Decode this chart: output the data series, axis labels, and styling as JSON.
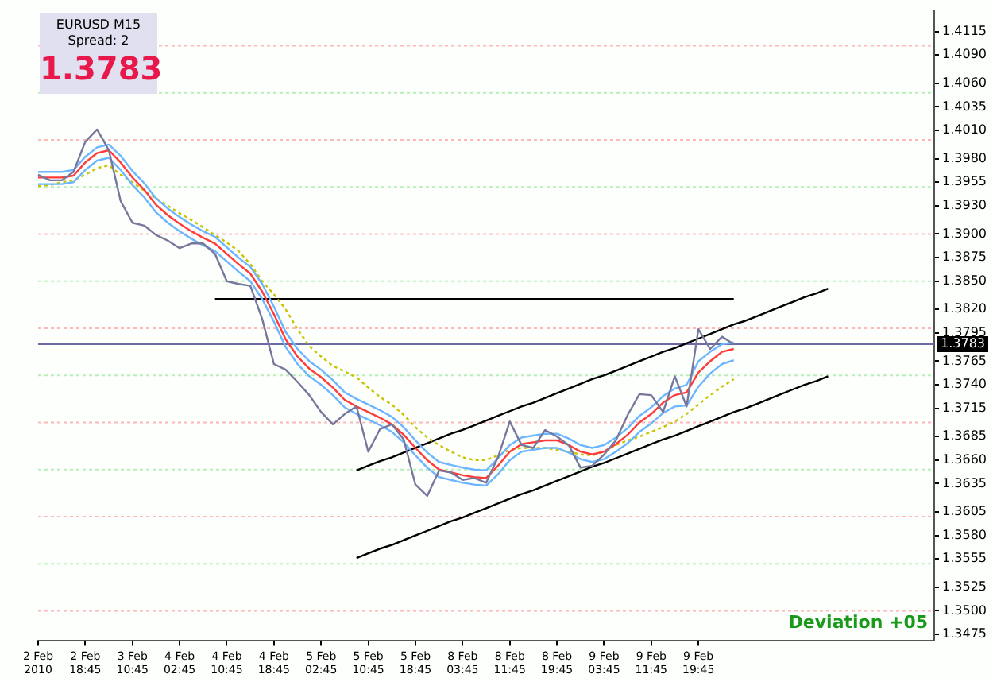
{
  "chart_data": {
    "type": "line",
    "legend": false,
    "marker": "none",
    "categories": [
      "2 Feb 2010",
      null,
      null,
      null,
      "2 Feb 18:45",
      null,
      null,
      null,
      "3 Feb 10:45",
      null,
      null,
      null,
      "4 Feb 02:45",
      null,
      null,
      null,
      "4 Feb 10:45",
      null,
      null,
      null,
      "4 Feb 18:45",
      null,
      null,
      null,
      "5 Feb 02:45",
      null,
      null,
      null,
      "5 Feb 10:45",
      null,
      null,
      null,
      "5 Feb 18:45",
      null,
      null,
      null,
      "8 Feb 03:45",
      null,
      null,
      null,
      "8 Feb 11:45",
      null,
      null,
      null,
      "8 Feb 19:45",
      null,
      null,
      null,
      "9 Feb 03:45",
      null,
      null,
      null,
      "9 Feb 11:45",
      null,
      null,
      null,
      "9 Feb 19:45",
      null,
      null,
      null,
      null,
      null,
      null,
      null,
      null,
      null,
      null,
      null,
      null,
      null,
      null,
      null,
      null,
      null,
      null,
      null,
      null
    ],
    "ylim": [
      1.3468,
      1.4137
    ],
    "yticks": [
      1.4115,
      {
        "value": 1.409,
        "label": "1.4090"
      },
      {
        "value": 1.406,
        "label": "1.4060"
      },
      1.4035,
      {
        "value": 1.401,
        "label": "1.4010"
      },
      {
        "value": 1.398,
        "label": "1.3980"
      },
      1.3955,
      {
        "value": 1.393,
        "label": "1.3930"
      },
      {
        "value": 1.39,
        "label": "1.3900"
      },
      1.3875,
      {
        "value": 1.385,
        "label": "1.3850"
      },
      {
        "value": 1.382,
        "label": "1.3820"
      },
      1.3795,
      1.3765,
      {
        "value": 1.374,
        "label": "1.3740"
      },
      1.3715,
      1.3685,
      {
        "value": 1.366,
        "label": "1.3660"
      },
      1.3635,
      1.3605,
      {
        "value": 1.358,
        "label": "1.3580"
      },
      1.3555,
      1.3525,
      {
        "value": 1.35,
        "label": "1.3500"
      },
      1.3475
    ],
    "series": [
      {
        "color": "#77779c",
        "values": [
          1.3963,
          1.3957,
          1.3957,
          1.3966,
          1.3998,
          1.4011,
          1.3989,
          1.3935,
          1.3912,
          1.3909,
          1.3899,
          1.3893,
          1.3885,
          1.389,
          1.389,
          1.3879,
          1.385,
          1.3847,
          1.3845,
          1.381,
          1.3762,
          1.3756,
          1.3743,
          1.3729,
          1.3711,
          1.3698,
          1.3709,
          1.3717,
          1.3669,
          1.3693,
          1.3698,
          1.3682,
          1.3634,
          1.3622,
          1.3649,
          1.3647,
          1.3639,
          1.3641,
          1.3636,
          1.3663,
          1.3701,
          1.3676,
          1.3673,
          1.3692,
          1.3685,
          1.3676,
          1.3652,
          1.3654,
          1.3666,
          1.3681,
          1.3708,
          1.373,
          1.3729,
          1.3711,
          1.3749,
          1.3717,
          1.3799,
          1.3778,
          1.3791,
          1.3783,
          null,
          null,
          null,
          null,
          null,
          null,
          null,
          null,
          null,
          null,
          null,
          null,
          null,
          null,
          null,
          null,
          null
        ]
      },
      {
        "color": "#ff3b3b",
        "values": [
          1.396,
          1.396,
          1.396,
          1.3962,
          1.3976,
          1.3986,
          1.3989,
          1.3976,
          1.396,
          1.3947,
          1.3931,
          1.392,
          1.3911,
          1.3903,
          1.3896,
          1.389,
          1.3879,
          1.3868,
          1.3858,
          1.3839,
          1.3815,
          1.3788,
          1.377,
          1.3757,
          1.3748,
          1.3737,
          1.3724,
          1.3717,
          1.3711,
          1.3705,
          1.3698,
          1.3687,
          1.3673,
          1.366,
          1.365,
          1.3647,
          1.3644,
          1.3642,
          1.3641,
          1.3654,
          1.3669,
          1.3677,
          1.3679,
          1.3681,
          1.3681,
          1.3676,
          1.3669,
          1.3666,
          1.3669,
          1.3677,
          1.3687,
          1.37,
          1.3709,
          1.3721,
          1.3729,
          1.3732,
          1.3753,
          1.3765,
          1.3775,
          1.3778,
          null,
          null,
          null,
          null,
          null,
          null,
          null,
          null,
          null,
          null,
          null,
          null,
          null,
          null,
          null,
          null,
          null
        ]
      },
      {
        "color": "#6cb6ff",
        "values": [
          1.3966,
          1.3966,
          1.3966,
          1.3968,
          1.3982,
          1.3992,
          1.3995,
          1.3983,
          1.3967,
          1.3954,
          1.3938,
          1.3927,
          1.3918,
          1.391,
          1.3903,
          1.3897,
          1.3886,
          1.3875,
          1.3865,
          1.3847,
          1.3823,
          1.3796,
          1.3778,
          1.3765,
          1.3756,
          1.3745,
          1.3732,
          1.3725,
          1.3719,
          1.3713,
          1.3706,
          1.3695,
          1.3681,
          1.3668,
          1.3658,
          1.3655,
          1.3652,
          1.365,
          1.3649,
          1.3662,
          1.3676,
          1.3684,
          1.3686,
          1.3688,
          1.3688,
          1.3683,
          1.3676,
          1.3673,
          1.3676,
          1.3684,
          1.3694,
          1.3707,
          1.3716,
          1.3728,
          1.3736,
          1.374,
          1.3765,
          1.3775,
          1.3783,
          1.3785,
          null,
          null,
          null,
          null,
          null,
          null,
          null,
          null,
          null,
          null,
          null,
          null,
          null,
          null,
          null,
          null,
          null
        ]
      },
      {
        "color": "#6cb6ff",
        "values": [
          1.3953,
          1.3953,
          1.3953,
          1.3955,
          1.3968,
          1.3978,
          1.3981,
          1.3968,
          1.3952,
          1.3939,
          1.3923,
          1.3912,
          1.3903,
          1.3895,
          1.3888,
          1.3882,
          1.3871,
          1.386,
          1.385,
          1.3831,
          1.3807,
          1.378,
          1.3762,
          1.3749,
          1.374,
          1.3729,
          1.3716,
          1.3709,
          1.3703,
          1.3697,
          1.369,
          1.3679,
          1.3665,
          1.3652,
          1.3642,
          1.3639,
          1.3636,
          1.3634,
          1.3633,
          1.3645,
          1.366,
          1.3669,
          1.3671,
          1.3673,
          1.3673,
          1.3668,
          1.3661,
          1.3658,
          1.3661,
          1.3669,
          1.3678,
          1.369,
          1.3699,
          1.371,
          1.3717,
          1.3718,
          1.3738,
          1.3752,
          1.3762,
          1.3766,
          null,
          null,
          null,
          null,
          null,
          null,
          null,
          null,
          null,
          null,
          null,
          null,
          null,
          null,
          null,
          null,
          null
        ]
      },
      {
        "color": "#c8c400",
        "line_style": "dotted",
        "values": [
          1.3951,
          1.3952,
          1.3955,
          1.3957,
          1.3963,
          1.397,
          1.3973,
          1.3963,
          1.3955,
          1.3946,
          1.3938,
          1.393,
          1.3922,
          1.3915,
          1.3907,
          1.3899,
          1.3891,
          1.3882,
          1.3868,
          1.385,
          1.3836,
          1.382,
          1.3799,
          1.3781,
          1.377,
          1.376,
          1.3754,
          1.3748,
          1.3737,
          1.3727,
          1.3719,
          1.3708,
          1.3695,
          1.3684,
          1.3676,
          1.3669,
          1.3663,
          1.366,
          1.366,
          1.3665,
          1.3671,
          1.3673,
          1.3673,
          1.3673,
          1.3671,
          1.3669,
          1.3666,
          1.3665,
          1.3669,
          1.3676,
          1.3681,
          1.3685,
          1.369,
          1.3695,
          1.3701,
          1.3709,
          1.3719,
          1.3729,
          1.3738,
          1.3746,
          null,
          null,
          null,
          null,
          null,
          null,
          null,
          null,
          null,
          null,
          null,
          null,
          null,
          null,
          null,
          null,
          null
        ]
      },
      {
        "color": "#000000",
        "values": [
          null,
          null,
          null,
          null,
          null,
          null,
          null,
          null,
          null,
          null,
          null,
          null,
          null,
          null,
          null,
          1.3831,
          1.3831,
          1.3831,
          1.3831,
          1.3831,
          1.3831,
          1.3831,
          1.3831,
          1.3831,
          1.3831,
          1.3831,
          1.3831,
          1.3831,
          1.3831,
          1.3831,
          1.3831,
          1.3831,
          1.3831,
          1.3831,
          1.3831,
          1.3831,
          1.3831,
          1.3831,
          1.3831,
          1.3831,
          1.3831,
          1.3831,
          1.3831,
          1.3831,
          1.3831,
          1.3831,
          1.3831,
          1.3831,
          1.3831,
          1.3831,
          1.3831,
          1.3831,
          1.3831,
          1.3831,
          1.3831,
          1.3831,
          1.3831,
          1.3831,
          1.3831,
          1.3831,
          null,
          null,
          null,
          null,
          null,
          null,
          null,
          null,
          null,
          null,
          null,
          null,
          null,
          null,
          null,
          null,
          null
        ]
      },
      {
        "color": "#000000",
        "values": [
          null,
          null,
          null,
          null,
          null,
          null,
          null,
          null,
          null,
          null,
          null,
          null,
          null,
          null,
          null,
          null,
          null,
          null,
          null,
          null,
          null,
          null,
          null,
          null,
          null,
          null,
          null,
          1.3649,
          1.3654,
          1.3659,
          1.3663,
          1.3668,
          1.3673,
          1.3678,
          1.3683,
          1.3688,
          1.3692,
          1.3697,
          1.3702,
          1.3707,
          1.3712,
          1.3717,
          1.3721,
          1.3726,
          1.3731,
          1.3736,
          1.3741,
          1.3746,
          1.375,
          1.3755,
          1.376,
          1.3765,
          1.377,
          1.3775,
          1.3779,
          1.3784,
          1.3789,
          1.3794,
          1.3799,
          1.3804,
          1.3808,
          1.3813,
          1.3818,
          1.3823,
          1.3828,
          1.3833,
          1.3837,
          1.3842,
          null,
          null,
          null,
          null,
          null,
          null,
          null,
          null,
          null
        ]
      },
      {
        "color": "#000000",
        "values": [
          null,
          null,
          null,
          null,
          null,
          null,
          null,
          null,
          null,
          null,
          null,
          null,
          null,
          null,
          null,
          null,
          null,
          null,
          null,
          null,
          null,
          null,
          null,
          null,
          null,
          null,
          null,
          1.3556,
          1.3561,
          1.3566,
          1.357,
          1.3575,
          1.358,
          1.3585,
          1.359,
          1.3595,
          1.3599,
          1.3604,
          1.3609,
          1.3614,
          1.3619,
          1.3624,
          1.3628,
          1.3633,
          1.3638,
          1.3643,
          1.3648,
          1.3653,
          1.3657,
          1.3662,
          1.3667,
          1.3672,
          1.3677,
          1.3682,
          1.3686,
          1.3691,
          1.3696,
          1.3701,
          1.3706,
          1.3711,
          1.3715,
          1.372,
          1.3725,
          1.373,
          1.3735,
          1.374,
          1.3744,
          1.3749,
          null,
          null,
          null,
          null,
          null,
          null,
          null,
          null,
          null
        ]
      }
    ],
    "ref_lines": [
      {
        "axis": "y",
        "value": 1.41,
        "color": "#ffb8b8",
        "line_style": "dotted"
      },
      {
        "axis": "y",
        "value": 1.405,
        "color": "#b8eeb8",
        "line_style": "dotted"
      },
      {
        "axis": "y",
        "value": 1.4,
        "color": "#ffb8b8",
        "line_style": "dotted"
      },
      {
        "axis": "y",
        "value": 1.395,
        "color": "#b8eeb8",
        "line_style": "dotted"
      },
      {
        "axis": "y",
        "value": 1.39,
        "color": "#ffb8b8",
        "line_style": "dotted"
      },
      {
        "axis": "y",
        "value": 1.385,
        "color": "#b8eeb8",
        "line_style": "dotted"
      },
      {
        "axis": "y",
        "value": 1.38,
        "color": "#ffb8b8",
        "line_style": "dotted"
      },
      {
        "axis": "y",
        "value": 1.375,
        "color": "#b8eeb8",
        "line_style": "dotted"
      },
      {
        "axis": "y",
        "value": 1.37,
        "color": "#ffb8b8",
        "line_style": "dotted"
      },
      {
        "axis": "y",
        "value": 1.365,
        "color": "#b8eeb8",
        "line_style": "dotted"
      },
      {
        "axis": "y",
        "value": 1.36,
        "color": "#ffb8b8",
        "line_style": "dotted"
      },
      {
        "axis": "y",
        "value": 1.355,
        "color": "#b8eeb8",
        "line_style": "dotted"
      },
      {
        "axis": "y",
        "value": 1.35,
        "color": "#ffb8b8",
        "line_style": "dotted"
      },
      {
        "axis": "y",
        "value": 1.3783,
        "label": "1.3783",
        "color": "#6a6aa8",
        "line_style": "solid"
      }
    ],
    "annotations": [
      "EURUSD  M15",
      "Spread:  2",
      "1.3783",
      "Deviation +05"
    ]
  }
}
